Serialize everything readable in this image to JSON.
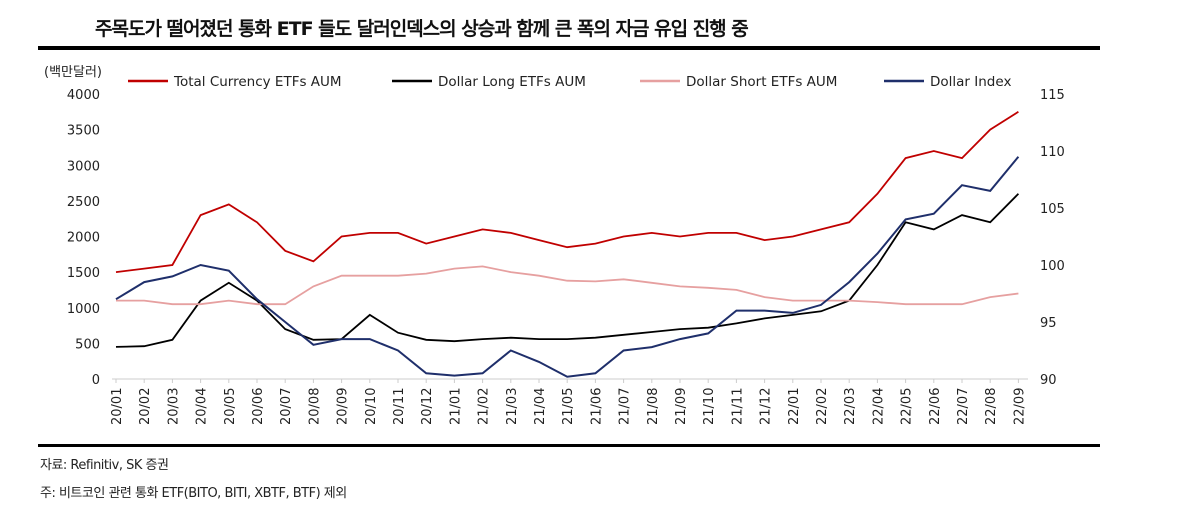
{
  "title": "주목도가 떨어졌던 통화 ETF 들도 달러인덱스의 상승과 함께 큰 폭의 자금 유입 진행 중",
  "footer": {
    "source": "자료: Refinitiv, SK 증권",
    "note": "주: 비트코인 관련 통화 ETF(BITO, BITI, XBTF, BTF) 제외"
  },
  "chart_data": {
    "type": "line",
    "ylabel_left": "(백만달러)",
    "ylim_left": [
      0,
      4000
    ],
    "yticks_left": [
      "0",
      "500",
      "1000",
      "1500",
      "2000",
      "2500",
      "3000",
      "3500",
      "4000"
    ],
    "ylim_right": [
      90,
      115
    ],
    "yticks_right": [
      "90",
      "95",
      "100",
      "105",
      "110",
      "115"
    ],
    "legend_position": "top",
    "categories": [
      "20/01",
      "20/02",
      "20/03",
      "20/04",
      "20/05",
      "20/06",
      "20/07",
      "20/08",
      "20/09",
      "20/10",
      "20/11",
      "20/12",
      "21/01",
      "21/02",
      "21/03",
      "21/04",
      "21/05",
      "21/06",
      "21/07",
      "21/08",
      "21/09",
      "21/10",
      "21/11",
      "21/12",
      "22/01",
      "22/02",
      "22/03",
      "22/04",
      "22/05",
      "22/06",
      "22/07",
      "22/08",
      "22/09"
    ],
    "series": [
      {
        "name": "Total Currency ETFs AUM",
        "axis": "left",
        "color": "#c00000",
        "values": [
          1500,
          1550,
          1600,
          2300,
          2450,
          2200,
          1800,
          1650,
          2000,
          2050,
          2050,
          1900,
          2000,
          2100,
          2050,
          1950,
          1850,
          1900,
          2000,
          2050,
          2000,
          2050,
          2050,
          1950,
          2000,
          2100,
          2200,
          2600,
          3100,
          3200,
          3100,
          3500,
          3750
        ]
      },
      {
        "name": "Dollar Long ETFs AUM",
        "axis": "left",
        "color": "#000000",
        "values": [
          450,
          460,
          550,
          1100,
          1350,
          1100,
          700,
          550,
          560,
          900,
          650,
          550,
          530,
          560,
          580,
          560,
          560,
          580,
          620,
          660,
          700,
          720,
          780,
          850,
          900,
          950,
          1100,
          1600,
          2200,
          2100,
          2300,
          2200,
          2600
        ]
      },
      {
        "name": "Dollar Short ETFs AUM",
        "axis": "left",
        "color": "#e6a0a0",
        "values": [
          1100,
          1100,
          1050,
          1050,
          1100,
          1050,
          1050,
          1300,
          1450,
          1450,
          1450,
          1480,
          1550,
          1580,
          1500,
          1450,
          1380,
          1370,
          1400,
          1350,
          1300,
          1280,
          1250,
          1150,
          1100,
          1100,
          1100,
          1080,
          1050,
          1050,
          1050,
          1150,
          1200
        ]
      },
      {
        "name": "Dollar Index",
        "axis": "right",
        "color": "#1f2f6b",
        "values": [
          97,
          98.5,
          99,
          100,
          99.5,
          97,
          95,
          93,
          93.5,
          93.5,
          92.5,
          90.5,
          90.3,
          90.5,
          92.5,
          91.5,
          90.2,
          90.5,
          92.5,
          92.8,
          93.5,
          94,
          96,
          96,
          95.8,
          96.5,
          98.5,
          101,
          104,
          104.5,
          107,
          106.5,
          109.5
        ]
      }
    ]
  }
}
